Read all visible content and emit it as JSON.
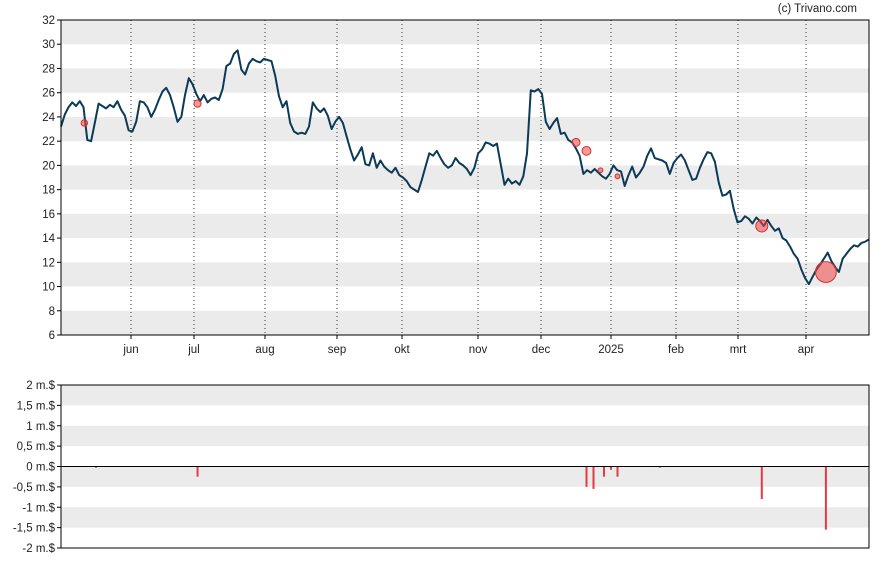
{
  "credit": "(c) Trivano.com",
  "colors": {
    "price_line": "#0b3a57",
    "volume_bar": "#e63946",
    "marker_fill": "rgba(239,68,68,0.55)",
    "marker_stroke": "#d23030",
    "band": "#ebebeb",
    "axis": "#000000",
    "vgrid": "#333333"
  },
  "chart_data": [
    {
      "type": "line",
      "title": "",
      "xlabel": "",
      "ylabel": "",
      "ylim": [
        6,
        32
      ],
      "yticks": [
        "32",
        "30",
        "28",
        "26",
        "24",
        "22",
        "20",
        "18",
        "16",
        "14",
        "12",
        "10",
        "8",
        "6"
      ],
      "xticks": [
        "jun",
        "jul",
        "aug",
        "sep",
        "okt",
        "nov",
        "dec",
        "2025",
        "feb",
        "mrt",
        "apr"
      ],
      "grid": "alternating horizontal bands, dotted vertical month lines",
      "series": [
        {
          "values": [
            23.2,
            24.2,
            24.8,
            25.2,
            24.9,
            25.3,
            24.8,
            22.1,
            22.0,
            23.5,
            25.1,
            24.9,
            24.7,
            25.0,
            24.8,
            25.3,
            24.6,
            24.1,
            22.9,
            22.8,
            23.6,
            25.3,
            25.2,
            24.8,
            24.0,
            24.6,
            25.4,
            26.1,
            26.4,
            25.8,
            24.8,
            23.6,
            24.0,
            25.8,
            27.2,
            26.7,
            25.9,
            25.3,
            25.8,
            25.2,
            25.5,
            25.6,
            25.4,
            26.3,
            28.2,
            28.4,
            29.2,
            29.5,
            27.9,
            27.5,
            28.4,
            28.8,
            28.6,
            28.5,
            28.8,
            28.7,
            28.6,
            27.4,
            25.7,
            24.8,
            25.3,
            23.5,
            22.8,
            22.6,
            22.7,
            22.6,
            23.2,
            25.2,
            24.7,
            24.4,
            24.7,
            24.1,
            23.0,
            23.6,
            24.0,
            23.5,
            22.4,
            21.3,
            20.4,
            20.9,
            21.5,
            20.1,
            20.0,
            21.0,
            19.8,
            20.4,
            19.9,
            19.6,
            19.4,
            19.8,
            19.2,
            19.0,
            18.7,
            18.2,
            18.0,
            17.8,
            18.8,
            19.9,
            21.0,
            20.8,
            21.2,
            20.6,
            20.1,
            19.8,
            20.0,
            20.6,
            20.2,
            20.0,
            19.7,
            19.2,
            19.8,
            21.0,
            21.3,
            21.9,
            21.8,
            21.6,
            21.8,
            20.1,
            18.4,
            18.9,
            18.5,
            18.7,
            18.4,
            19.1,
            21.0,
            26.2,
            26.1,
            26.3,
            25.9,
            23.6,
            23.0,
            23.5,
            23.9,
            22.6,
            22.7,
            22.1,
            21.9,
            21.4,
            20.8,
            19.3,
            19.6,
            19.4,
            19.7,
            19.4,
            19.1,
            18.9,
            19.3,
            20.0,
            19.6,
            19.5,
            18.3,
            19.2,
            19.9,
            19.0,
            19.4,
            19.9,
            20.8,
            21.4,
            20.6,
            20.5,
            20.4,
            20.2,
            19.3,
            20.2,
            20.6,
            20.9,
            20.4,
            19.6,
            18.8,
            18.9,
            19.8,
            20.5,
            21.1,
            21.0,
            20.3,
            18.6,
            17.5,
            17.6,
            17.9,
            16.4,
            15.3,
            15.4,
            15.8,
            15.6,
            15.2,
            15.7,
            15.4,
            15.0,
            15.5,
            15.0,
            14.6,
            14.8,
            14.0,
            13.8,
            13.3,
            12.7,
            12.3,
            11.4,
            10.7,
            10.2,
            10.8,
            11.4,
            11.8,
            12.3,
            12.8,
            12.1,
            11.6,
            11.2,
            12.3,
            12.7,
            13.1,
            13.4,
            13.3,
            13.6,
            13.7,
            13.9
          ]
        }
      ],
      "markers": [
        {
          "x": 0.8,
          "y": 23.5,
          "r": 0.8
        },
        {
          "x": 2.05,
          "y": 25.1,
          "r": 0.9
        },
        {
          "x": 7.5,
          "y": 21.9,
          "r": 1.0
        },
        {
          "x": 7.65,
          "y": 21.2,
          "r": 1.1
        },
        {
          "x": 7.85,
          "y": 19.6,
          "r": 0.6
        },
        {
          "x": 8.1,
          "y": 19.1,
          "r": 0.6
        },
        {
          "x": 10.35,
          "y": 15.0,
          "r": 1.5
        },
        {
          "x": 11.3,
          "y": 11.2,
          "r": 2.6
        }
      ]
    },
    {
      "type": "bar",
      "title": "",
      "ylim": [
        -2000000,
        2000000
      ],
      "yticks": [
        "2 m.$",
        "1,5 m.$",
        "1 m.$",
        "0,5 m.$",
        "0 m.$",
        "-0,5 m.$",
        "-1 m.$",
        "-1,5 m.$",
        "-2 m.$"
      ],
      "bars": [
        {
          "x": 0.85,
          "value": -30000
        },
        {
          "x": 2.05,
          "value": -250000
        },
        {
          "x": 7.65,
          "value": -500000
        },
        {
          "x": 7.75,
          "value": -550000
        },
        {
          "x": 7.9,
          "value": -250000
        },
        {
          "x": 8.0,
          "value": -80000
        },
        {
          "x": 8.1,
          "value": -250000
        },
        {
          "x": 8.75,
          "value": -30000
        },
        {
          "x": 10.35,
          "value": -800000
        },
        {
          "x": 11.3,
          "value": -1550000
        }
      ]
    }
  ]
}
